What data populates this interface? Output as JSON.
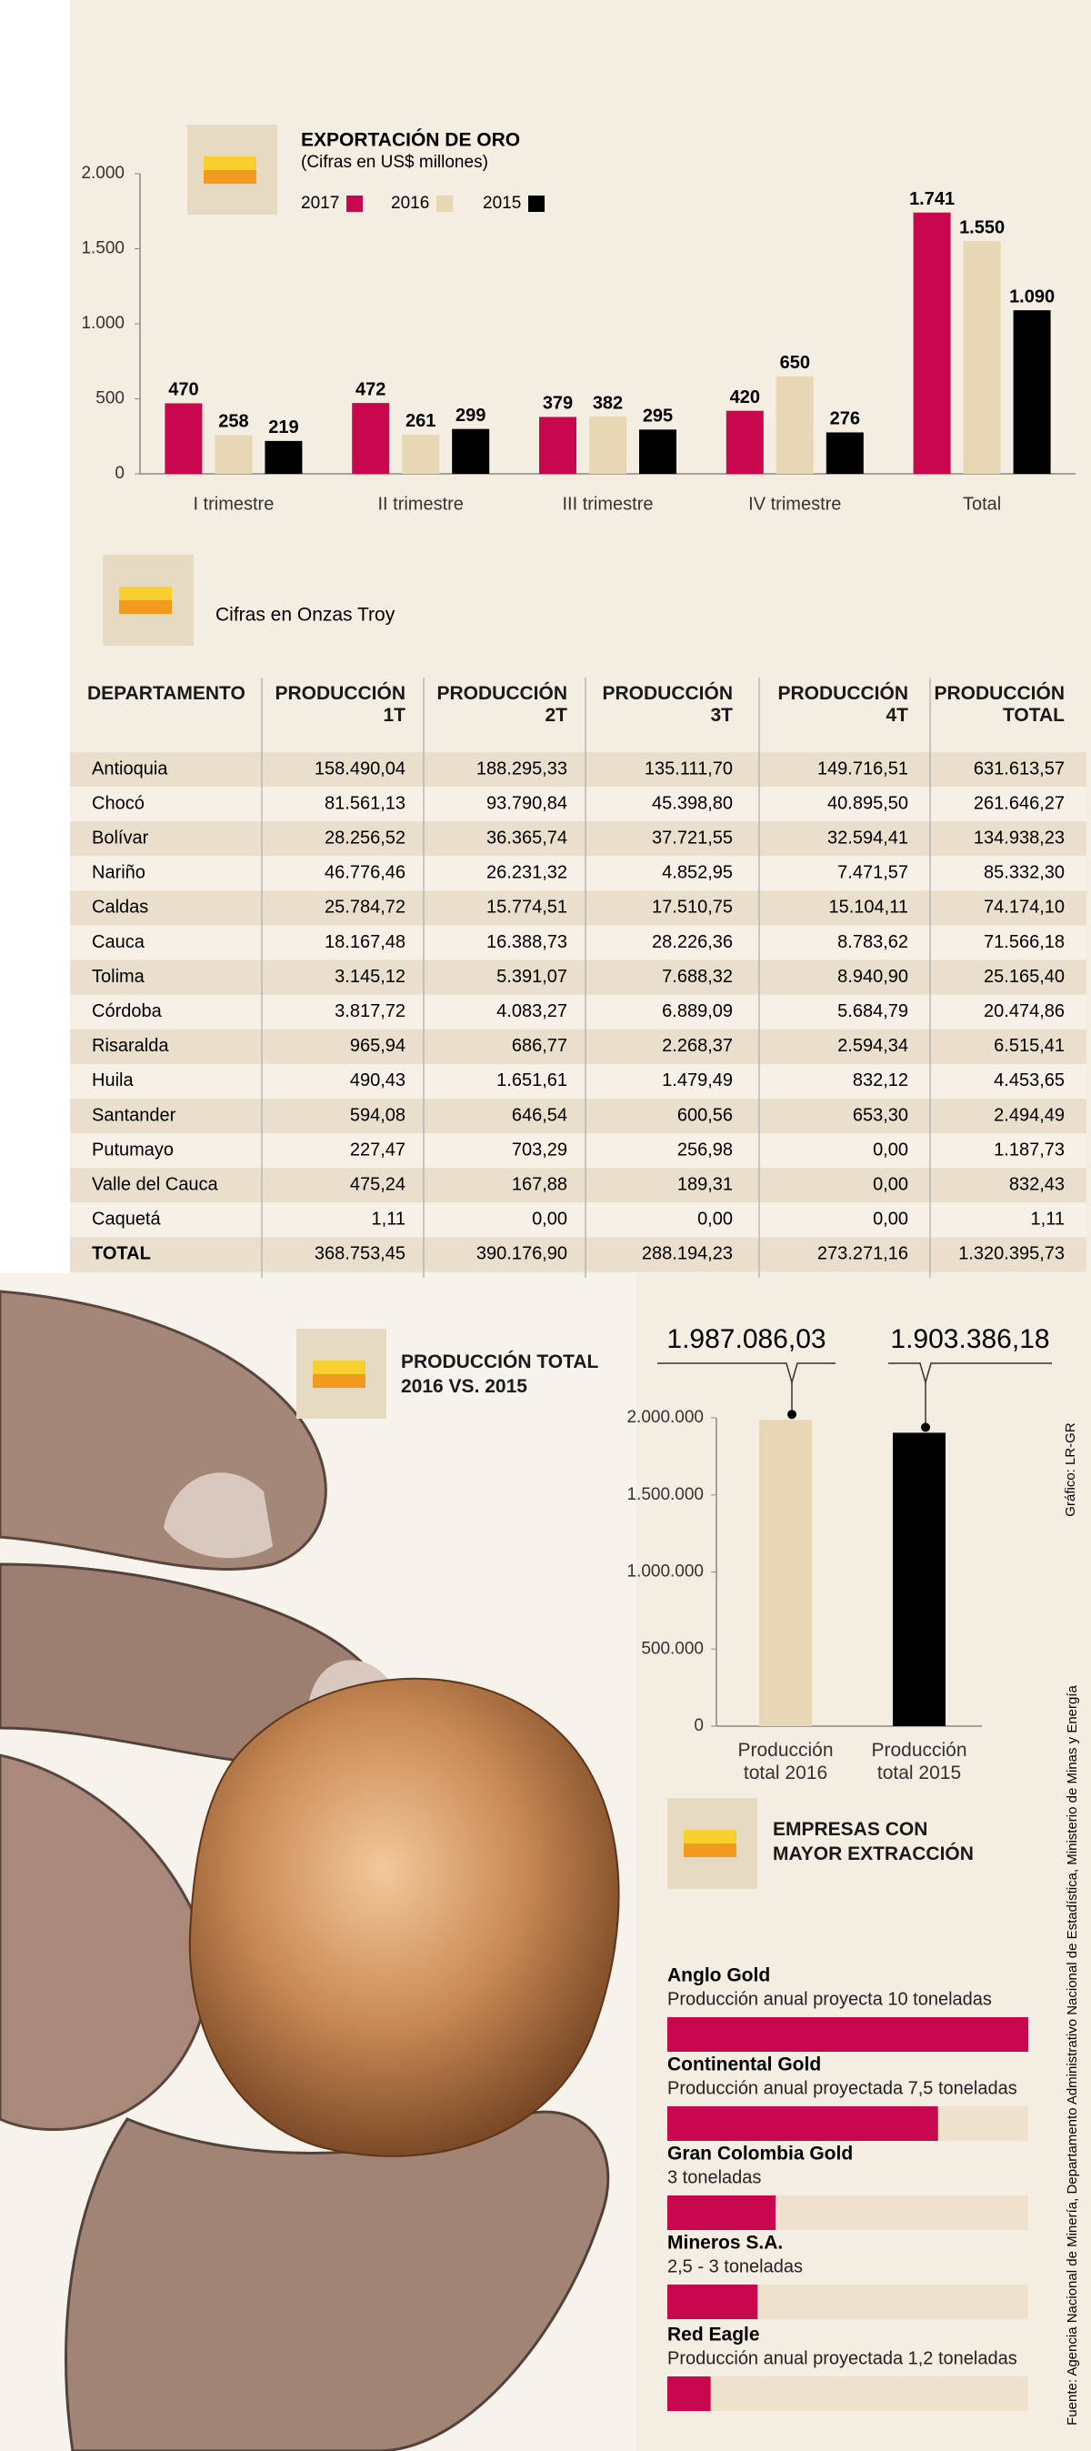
{
  "chart_data": [
    {
      "type": "bar",
      "title": "EXPORTACIÓN DE ORO",
      "subtitle": "(Cifras en US$ millones)",
      "categories": [
        "I trimestre",
        "II trimestre",
        "III trimestre",
        "IV trimestre",
        "Total"
      ],
      "series": [
        {
          "name": "2017",
          "color": "#c8074f",
          "values": [
            470,
            472,
            379,
            420,
            1741
          ],
          "value_labels": [
            "470",
            "472",
            "379",
            "420",
            "1.741"
          ]
        },
        {
          "name": "2016",
          "color": "#e8d7b5",
          "values": [
            258,
            261,
            382,
            650,
            1550
          ],
          "value_labels": [
            "258",
            "261",
            "382",
            "650",
            "1.550"
          ]
        },
        {
          "name": "2015",
          "color": "#000000",
          "values": [
            219,
            299,
            295,
            276,
            1090
          ],
          "value_labels": [
            "219",
            "299",
            "295",
            "276",
            "1.090"
          ]
        }
      ],
      "ylim": [
        0,
        2000
      ],
      "yticks": [
        0,
        500,
        {
          "value": 1000,
          "label": "1.000"
        },
        {
          "value": 1500,
          "label": "1.500"
        },
        {
          "value": 2000,
          "label": "2.000"
        }
      ]
    },
    {
      "type": "bar",
      "title": "PRODUCCIÓN TOTAL 2016 VS. 2015",
      "categories": [
        "Producción total 2016",
        "Producción total 2015"
      ],
      "values": [
        1987086.03,
        1903386.18
      ],
      "value_labels": [
        "1.987.086,03",
        "1.903.386,18"
      ],
      "colors": [
        "#e8d7b5",
        "#000000"
      ],
      "ylim": [
        0,
        2000000
      ],
      "yticks": [
        0,
        {
          "value": 500000,
          "label": "500.000"
        },
        {
          "value": 1000000,
          "label": "1.000.000"
        },
        {
          "value": 1500000,
          "label": "1.500.000"
        },
        {
          "value": 2000000,
          "label": "2.000.000"
        }
      ]
    },
    {
      "type": "hbar",
      "title": "EMPRESAS CON MAYOR EXTRACCIÓN",
      "categories": [
        "Anglo Gold",
        "Continental Gold",
        "Gran Colombia Gold",
        "Mineros S.A.",
        "Red Eagle"
      ],
      "descriptions": [
        "Producción anual proyecta 10 toneladas",
        "Producción anual proyectada 7,5 toneladas",
        "3 toneladas",
        "2,5 - 3 toneladas",
        "Producción anual proyectada 1,2 toneladas"
      ],
      "values": [
        10,
        7.5,
        3,
        2.5,
        1.2
      ],
      "xlim": [
        0,
        10
      ],
      "color": "#c8074f",
      "track_color": "#efe2cd"
    }
  ],
  "table": {
    "caption": "Cifras en Onzas Troy",
    "header": [
      "DEPARTAMENTO",
      "PRODUCCIÓN 1T",
      "PRODUCCIÓN 2T",
      "PRODUCCIÓN 3T",
      "PRODUCCIÓN 4T",
      "PRODUCCIÓN TOTAL"
    ],
    "rows": [
      [
        "Antioquia",
        "158.490,04",
        "188.295,33",
        "135.111,70",
        "149.716,51",
        "631.613,57"
      ],
      [
        "Chocó",
        "81.561,13",
        "93.790,84",
        "45.398,80",
        "40.895,50",
        "261.646,27"
      ],
      [
        "Bolívar",
        "28.256,52",
        "36.365,74",
        "37.721,55",
        "32.594,41",
        "134.938,23"
      ],
      [
        "Nariño",
        "46.776,46",
        "26.231,32",
        "4.852,95",
        "7.471,57",
        "85.332,30"
      ],
      [
        "Caldas",
        "25.784,72",
        "15.774,51",
        "17.510,75",
        "15.104,11",
        "74.174,10"
      ],
      [
        "Cauca",
        "18.167,48",
        "16.388,73",
        "28.226,36",
        "8.783,62",
        "71.566,18"
      ],
      [
        "Tolima",
        "3.145,12",
        "5.391,07",
        "7.688,32",
        "8.940,90",
        "25.165,40"
      ],
      [
        "Córdoba",
        "3.817,72",
        "4.083,27",
        "6.889,09",
        "5.684,79",
        "20.474,86"
      ],
      [
        "Risaralda",
        "965,94",
        "686,77",
        "2.268,37",
        "2.594,34",
        "6.515,41"
      ],
      [
        "Huila",
        "490,43",
        "1.651,61",
        "1.479,49",
        "832,12",
        "4.453,65"
      ],
      [
        "Santander",
        "594,08",
        "646,54",
        "600,56",
        "653,30",
        "2.494,49"
      ],
      [
        "Putumayo",
        "227,47",
        "703,29",
        "256,98",
        "0,00",
        "1.187,73"
      ],
      [
        "Valle del Cauca",
        "475,24",
        "167,88",
        "189,31",
        "0,00",
        "832,43"
      ],
      [
        "Caquetá",
        "1,11",
        "0,00",
        "0,00",
        "0,00",
        "1,11"
      ],
      [
        "TOTAL",
        "368.753,45",
        "390.176,90",
        "288.194,23",
        "273.271,16",
        "1.320.395,73"
      ]
    ]
  },
  "credit": "Gráfico: LR-GR",
  "source": "Fuente: Agencia Nacional de Minería, Departamento Administrativo Nacional de Estadística, Ministerio de Minas y Energía"
}
